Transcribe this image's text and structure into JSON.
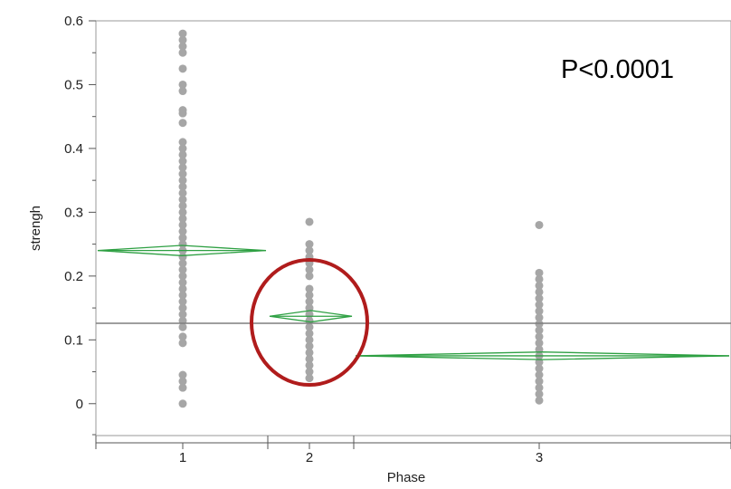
{
  "chart_data": {
    "type": "scatter",
    "subtype": "oneway-means-diamonds",
    "xlabel": "Phase",
    "ylabel": "strengh",
    "ylim": [
      -0.05,
      0.6
    ],
    "y_ticks": [
      "0",
      "0.1",
      "0.2",
      "0.3",
      "0.4",
      "0.5",
      "0.6"
    ],
    "categories": [
      "1",
      "2",
      "3"
    ],
    "grand_mean": 0.126,
    "annotation": "P<0.0001",
    "highlight": {
      "category": "2",
      "shape": "circle",
      "color": "#b01c1c"
    },
    "colors": {
      "points": "#a6a6a6",
      "diamonds": "#2ea043",
      "mean_line": "#7f7f7f",
      "axis": "#555555"
    },
    "groups": [
      {
        "phase": "1",
        "mean": 0.24,
        "ci": [
          0.232,
          0.248
        ],
        "points": [
          0.0,
          0.025,
          0.035,
          0.045,
          0.095,
          0.105,
          0.12,
          0.13,
          0.14,
          0.15,
          0.16,
          0.17,
          0.18,
          0.19,
          0.2,
          0.21,
          0.22,
          0.23,
          0.24,
          0.25,
          0.26,
          0.27,
          0.28,
          0.29,
          0.3,
          0.31,
          0.32,
          0.33,
          0.34,
          0.35,
          0.36,
          0.37,
          0.38,
          0.39,
          0.4,
          0.41,
          0.44,
          0.455,
          0.46,
          0.49,
          0.5,
          0.525,
          0.55,
          0.56,
          0.57,
          0.58
        ]
      },
      {
        "phase": "2",
        "mean": 0.137,
        "ci": [
          0.128,
          0.146
        ],
        "points": [
          0.04,
          0.05,
          0.06,
          0.07,
          0.08,
          0.09,
          0.1,
          0.11,
          0.12,
          0.13,
          0.14,
          0.15,
          0.16,
          0.17,
          0.18,
          0.2,
          0.21,
          0.22,
          0.23,
          0.24,
          0.25,
          0.285
        ]
      },
      {
        "phase": "3",
        "mean": 0.075,
        "ci": [
          0.069,
          0.081
        ],
        "points": [
          0.005,
          0.015,
          0.025,
          0.035,
          0.045,
          0.055,
          0.065,
          0.075,
          0.085,
          0.095,
          0.105,
          0.115,
          0.125,
          0.135,
          0.145,
          0.155,
          0.165,
          0.175,
          0.185,
          0.195,
          0.205,
          0.28
        ]
      }
    ]
  }
}
